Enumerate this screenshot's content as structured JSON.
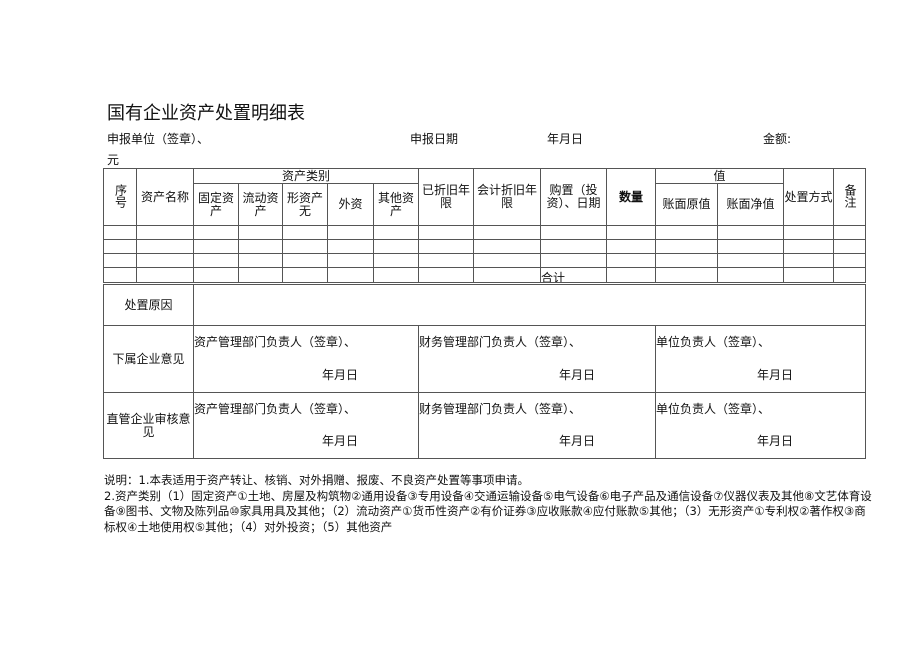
{
  "title": "国有企业资产处置明细表",
  "header": {
    "unit": "申报单位（签章）、",
    "date_label": "申报日期",
    "ymd": "年月日",
    "amount": "金额:",
    "currency": "元"
  },
  "columns": {
    "seq": "序号",
    "name": "资产名称",
    "category": "资产类别",
    "fixed": "固定资产",
    "current": "流动资产",
    "intangible": "形资产无",
    "external": "外资",
    "other": "其他资产",
    "depreciated": "已折旧年限",
    "acct_dep": "会计折旧年限",
    "purchase": "购置（投资）、日期",
    "qty": "数量",
    "value": "值",
    "book_orig": "账面原值",
    "book_net": "账面净值",
    "method": "处置方式",
    "remark": "备注"
  },
  "total": "合计",
  "reason": "处置原因",
  "sub_opinion": "下属企业意见",
  "direct_opinion": "直管企业审核意见",
  "sign": {
    "asset_dept": "资产管理部门负责人（签章）、",
    "finance_dept": "财务管理部门负责人（签章）、",
    "unit_head": "单位负责人（签章）、",
    "ymd": "年月日"
  },
  "notes": [
    "说明：1.本表适用于资产转让、核销、对外捐赠、报废、不良资产处置等事项申请。",
    "2.资产类别（1）固定资产①土地、房屋及构筑物②通用设备③专用设备④交通运输设备⑤电气设备⑥电子产品及通信设备⑦仪器仪表及其他⑧文艺体育设备⑨图书、文物及陈列品⑩家具用具及其他；（2）流动资产①货币性资产②有价证券③应收账款④应付账款⑤其他；（3）无形资产①专利权②著作权③商标权④土地使用权⑤其他；（4）对外投资；（5）其他资产"
  ]
}
